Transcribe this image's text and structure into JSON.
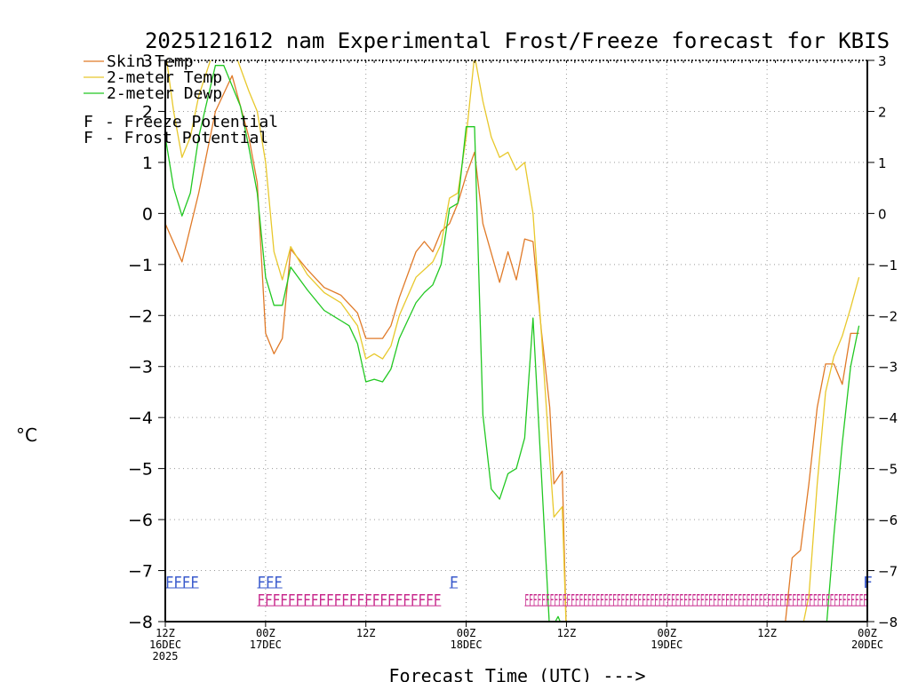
{
  "chart_data": {
    "type": "line",
    "title": "2025121612 nam Experimental Frost/Freeze forecast for KBIS",
    "xlabel": "Forecast Time (UTC) --->",
    "ylabel": "°C",
    "ylim": [
      -8,
      3
    ],
    "yticks": [
      3,
      2,
      1,
      0,
      -1,
      -2,
      -3,
      -4,
      -5,
      -6,
      -7,
      -8
    ],
    "xlim": [
      0,
      84
    ],
    "grid": true,
    "xticks": [
      {
        "x": 0,
        "label": "12Z",
        "sub": "16DEC",
        "sub2": "2025"
      },
      {
        "x": 12,
        "label": "00Z",
        "sub": "17DEC",
        "sub2": ""
      },
      {
        "x": 24,
        "label": "12Z",
        "sub": "",
        "sub2": ""
      },
      {
        "x": 36,
        "label": "00Z",
        "sub": "18DEC",
        "sub2": ""
      },
      {
        "x": 48,
        "label": "12Z",
        "sub": "",
        "sub2": ""
      },
      {
        "x": 60,
        "label": "00Z",
        "sub": "19DEC",
        "sub2": ""
      },
      {
        "x": 72,
        "label": "12Z",
        "sub": "",
        "sub2": ""
      },
      {
        "x": 84,
        "label": "00Z",
        "sub": "20DEC",
        "sub2": ""
      }
    ],
    "series": [
      {
        "name": "Skin Temp",
        "color": "#e07a28",
        "points": [
          [
            0,
            -0.2
          ],
          [
            2,
            -0.95
          ],
          [
            4,
            0.4
          ],
          [
            6,
            2
          ],
          [
            8,
            2.7
          ],
          [
            10,
            1.5
          ],
          [
            11,
            0.6
          ],
          [
            12,
            -2.35
          ],
          [
            13,
            -2.75
          ],
          [
            14,
            -2.45
          ],
          [
            15,
            -0.7
          ],
          [
            17,
            -1.1
          ],
          [
            19,
            -1.45
          ],
          [
            21,
            -1.6
          ],
          [
            23,
            -1.95
          ],
          [
            24,
            -2.45
          ],
          [
            26,
            -2.45
          ],
          [
            27,
            -2.2
          ],
          [
            28,
            -1.65
          ],
          [
            30,
            -0.75
          ],
          [
            31,
            -0.55
          ],
          [
            32,
            -0.75
          ],
          [
            33,
            -0.35
          ],
          [
            34,
            -0.2
          ],
          [
            35,
            0.2
          ],
          [
            36,
            0.75
          ],
          [
            37,
            1.2
          ],
          [
            38,
            -0.2
          ],
          [
            40,
            -1.35
          ],
          [
            41,
            -0.75
          ],
          [
            42,
            -1.3
          ],
          [
            43,
            -0.5
          ],
          [
            44,
            -0.55
          ],
          [
            45,
            -2.3
          ],
          [
            46,
            -3.8
          ],
          [
            46.5,
            -5.3
          ],
          [
            47.5,
            -5.05
          ],
          [
            48,
            -8.3
          ],
          [
            74,
            -8.3
          ],
          [
            75,
            -6.75
          ],
          [
            76,
            -6.6
          ],
          [
            77,
            -5.3
          ],
          [
            78,
            -3.8
          ],
          [
            79,
            -2.95
          ],
          [
            80,
            -2.95
          ],
          [
            81,
            -3.35
          ],
          [
            82,
            -2.35
          ],
          [
            83,
            -2.35
          ]
        ]
      },
      {
        "name": "2-meter Temp",
        "color": "#e8c82c",
        "points": [
          [
            0,
            3.2
          ],
          [
            1,
            2
          ],
          [
            2,
            1.1
          ],
          [
            3,
            1.5
          ],
          [
            4,
            2.3
          ],
          [
            6,
            3.3
          ],
          [
            8,
            3.3
          ],
          [
            10,
            2.4
          ],
          [
            11,
            2.0
          ],
          [
            12,
            1.0
          ],
          [
            13,
            -0.75
          ],
          [
            14,
            -1.3
          ],
          [
            15,
            -0.65
          ],
          [
            17,
            -1.2
          ],
          [
            19,
            -1.55
          ],
          [
            21,
            -1.75
          ],
          [
            23,
            -2.2
          ],
          [
            24,
            -2.85
          ],
          [
            25,
            -2.75
          ],
          [
            26,
            -2.85
          ],
          [
            27,
            -2.6
          ],
          [
            28,
            -2.0
          ],
          [
            30,
            -1.25
          ],
          [
            32,
            -0.95
          ],
          [
            33,
            -0.6
          ],
          [
            34,
            0.3
          ],
          [
            35,
            0.4
          ],
          [
            36,
            1.5
          ],
          [
            37,
            3.1
          ],
          [
            38,
            2.2
          ],
          [
            39,
            1.5
          ],
          [
            40,
            1.1
          ],
          [
            41,
            1.2
          ],
          [
            42,
            0.85
          ],
          [
            43,
            1.0
          ],
          [
            44,
            0.0
          ],
          [
            45,
            -2.35
          ],
          [
            46,
            -4.8
          ],
          [
            46.5,
            -5.95
          ],
          [
            47.5,
            -5.75
          ],
          [
            48,
            -8.3
          ],
          [
            76,
            -8.3
          ],
          [
            77,
            -7.5
          ],
          [
            78,
            -5.3
          ],
          [
            79,
            -3.5
          ],
          [
            80,
            -2.8
          ],
          [
            81,
            -2.4
          ],
          [
            82,
            -1.85
          ],
          [
            83,
            -1.25
          ]
        ]
      },
      {
        "name": "2-meter Dewp",
        "color": "#22c822",
        "points": [
          [
            0,
            1.5
          ],
          [
            1,
            0.5
          ],
          [
            2,
            -0.05
          ],
          [
            3,
            0.4
          ],
          [
            4,
            1.5
          ],
          [
            6,
            2.9
          ],
          [
            7,
            2.9
          ],
          [
            9,
            2.1
          ],
          [
            10,
            1.3
          ],
          [
            11,
            0.4
          ],
          [
            12,
            -1.25
          ],
          [
            13,
            -1.8
          ],
          [
            14,
            -1.8
          ],
          [
            15,
            -1.05
          ],
          [
            17,
            -1.5
          ],
          [
            19,
            -1.9
          ],
          [
            21,
            -2.1
          ],
          [
            22,
            -2.2
          ],
          [
            23,
            -2.55
          ],
          [
            24,
            -3.3
          ],
          [
            25,
            -3.25
          ],
          [
            26,
            -3.3
          ],
          [
            27,
            -3.05
          ],
          [
            28,
            -2.45
          ],
          [
            30,
            -1.75
          ],
          [
            31,
            -1.55
          ],
          [
            32,
            -1.4
          ],
          [
            33,
            -1.0
          ],
          [
            34,
            0.1
          ],
          [
            35,
            0.2
          ],
          [
            36,
            1.7
          ],
          [
            37,
            1.7
          ],
          [
            38,
            -3.95
          ],
          [
            39,
            -5.4
          ],
          [
            40,
            -5.6
          ],
          [
            41,
            -5.1
          ],
          [
            42,
            -5.0
          ],
          [
            43,
            -4.4
          ],
          [
            44,
            -2.05
          ],
          [
            45,
            -5.1
          ],
          [
            46,
            -8.2
          ],
          [
            47,
            -7.9
          ],
          [
            48,
            -8.3
          ],
          [
            79,
            -8.3
          ],
          [
            80,
            -6.3
          ],
          [
            81,
            -4.5
          ],
          [
            82,
            -3.0
          ],
          [
            83,
            -2.2
          ]
        ]
      }
    ],
    "legend": {
      "series_labels": [
        "Skin Temp",
        "2-meter Temp",
        "2-meter Dewp"
      ],
      "freeze": {
        "symbol": "F",
        "label": "- Freeze Potential",
        "color": "#c8288c"
      },
      "frost": {
        "symbol": "F",
        "label": "- Frost Potential",
        "color": "#3a5acc"
      }
    },
    "frost_marks": {
      "color": "#3a5acc",
      "value": -7.2,
      "runs": [
        {
          "label": "FFFF",
          "from": 0,
          "to": 4
        },
        {
          "label": "FFF",
          "from": 11,
          "to": 14
        },
        {
          "label": "F",
          "from": 34,
          "to": 35
        },
        {
          "label": "F",
          "from": 84,
          "to": 84
        }
      ]
    },
    "freeze_marks": {
      "color": "#c8288c",
      "value": -7.55,
      "runs": [
        {
          "label": "FFFFFFFFFFFFFFFFFFFFFFFF",
          "from": 11,
          "to": 33
        },
        {
          "label": "FFFFFFFFFFFFFFFFFFFFFFFFFFFFFFFFFFFFFFFFFFFFFFFFFFFFFFFFFFFFFFFFFFFFFFFFFFFFFFFFFF",
          "from": 43,
          "to": 84
        }
      ]
    }
  }
}
